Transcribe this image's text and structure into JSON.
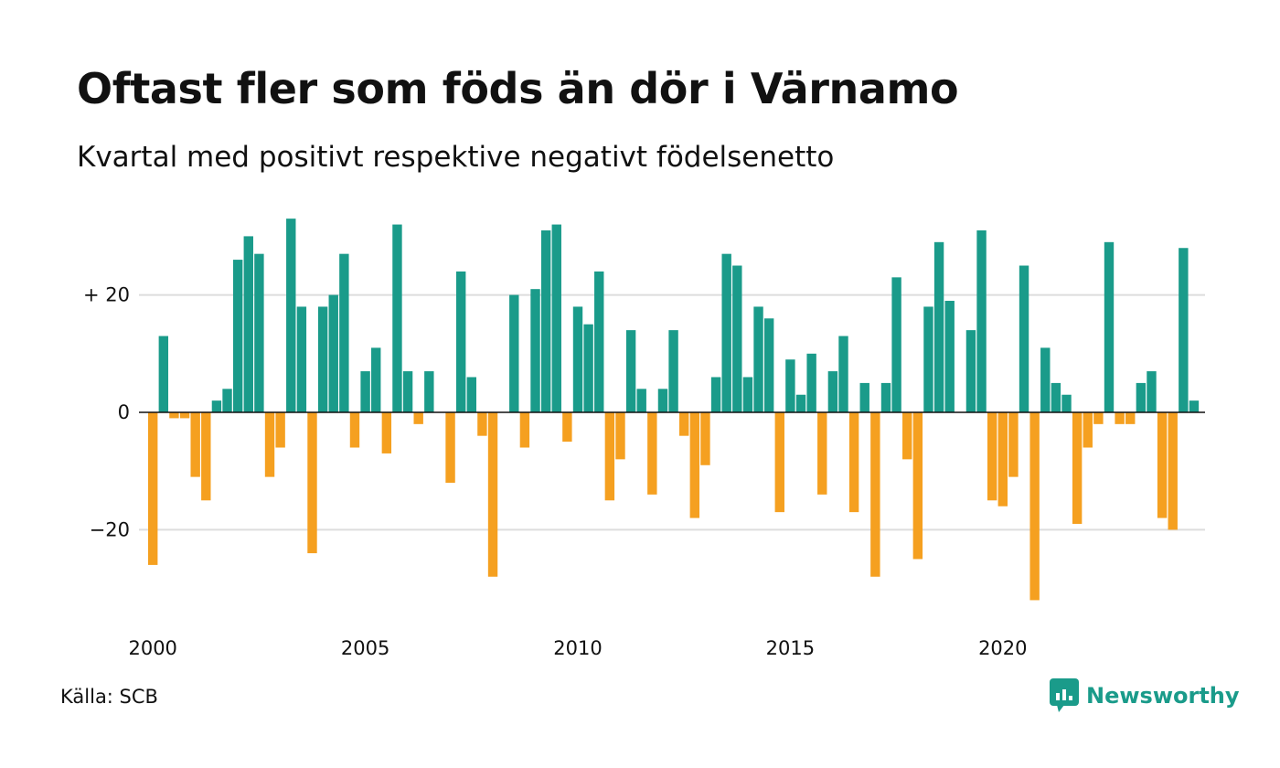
{
  "header": {
    "title": "Oftast fler som föds än dör i Värnamo",
    "subtitle": "Kvartal med positivt respektive negativt födelsenetto"
  },
  "footer": {
    "source": "Källa: SCB",
    "brand": "Newsworthy"
  },
  "colors": {
    "positive": "#1a9b8a",
    "negative": "#f5a020",
    "grid": "#dddddd",
    "axis": "#111111",
    "text": "#111111",
    "brand": "#1a9b8a"
  },
  "chart_data": {
    "type": "bar",
    "title": "Oftast fler som föds än dör i Värnamo",
    "subtitle": "Kvartal med positivt respektive negativt födelsenetto",
    "xlabel": "",
    "ylabel": "",
    "ylim": [
      -35,
      35
    ],
    "yticks": [
      {
        "value": 20,
        "label": "+ 20"
      },
      {
        "value": 0,
        "label": "0"
      },
      {
        "value": -20,
        "label": "−20"
      }
    ],
    "xticks": [
      {
        "year": 2000,
        "label": "2000"
      },
      {
        "year": 2005,
        "label": "2005"
      },
      {
        "year": 2010,
        "label": "2010"
      },
      {
        "year": 2015,
        "label": "2015"
      },
      {
        "year": 2020,
        "label": "2020"
      }
    ],
    "grid": true,
    "start_period": "2000 Q1",
    "period": "quarter",
    "values": [
      -26,
      13,
      -1,
      -1,
      -11,
      -15,
      2,
      4,
      26,
      30,
      27,
      -11,
      -6,
      33,
      18,
      -24,
      18,
      20,
      27,
      -6,
      7,
      11,
      -7,
      32,
      7,
      -2,
      7,
      0,
      -12,
      24,
      6,
      -4,
      -28,
      0,
      20,
      -6,
      21,
      31,
      32,
      -5,
      18,
      15,
      24,
      -15,
      -8,
      14,
      4,
      -14,
      4,
      14,
      -4,
      -18,
      -9,
      6,
      27,
      25,
      6,
      18,
      16,
      -17,
      9,
      3,
      10,
      -14,
      7,
      13,
      -17,
      5,
      -28,
      5,
      23,
      -8,
      -25,
      18,
      29,
      19,
      0,
      14,
      31,
      -15,
      -16,
      -11,
      25,
      -32,
      11,
      5,
      3,
      -19,
      -6,
      -2,
      29,
      -2,
      -2,
      5,
      7,
      -18,
      -20,
      28,
      2
    ]
  }
}
